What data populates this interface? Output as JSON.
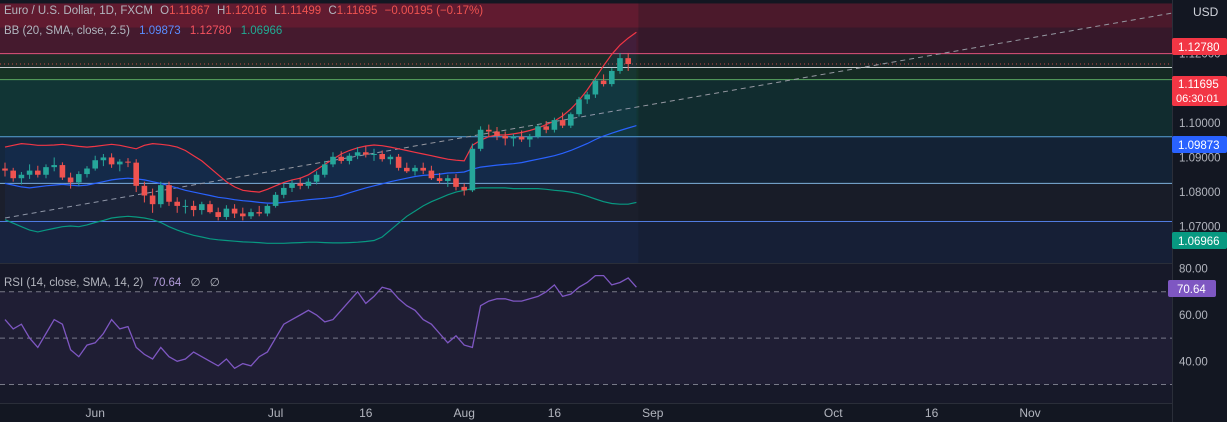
{
  "header": {
    "symbol": "Euro / U.S. Dollar, 1D, FXCM",
    "o_label": "O",
    "o": "1.11867",
    "h_label": "H",
    "h": "1.12016",
    "l_label": "L",
    "l": "1.11499",
    "c_label": "C",
    "c": "1.11695",
    "change": "−0.00195 (−0.17%)"
  },
  "bb": {
    "label": "BB (20, SMA, close, 2.5)",
    "basis": "1.09873",
    "upper": "1.12780",
    "lower": "1.06966"
  },
  "rsi": {
    "label": "RSI (14, close, SMA, 14, 2)",
    "value": "70.64",
    "na1": "∅",
    "na2": "∅"
  },
  "axis": {
    "currency": "USD",
    "price_ticks": [
      "1.12000",
      "1.11000",
      "1.10000",
      "1.09000",
      "1.08000",
      "1.07000"
    ],
    "rsi_ticks": [
      "80.00",
      "60.00",
      "40.00"
    ],
    "x_ticks": [
      "Jun",
      "Jul",
      "16",
      "Aug",
      "16",
      "Sep",
      "Oct",
      "16",
      "Nov"
    ],
    "countdown": "06:30:01"
  },
  "badges": {
    "upper": "1.12780",
    "price": "1.11695",
    "basis": "1.09873",
    "lower": "1.06966",
    "rsi": "70.64"
  },
  "colors": {
    "bg": "#131722",
    "up": "#26a69a",
    "down": "#ef5350",
    "bb_upper": "#f23645",
    "bb_basis": "#2962ff",
    "bb_lower": "#089981",
    "rsi": "#7e57c2",
    "rsi_badge": "#7e57c2"
  },
  "chart_data": {
    "type": "candlestick",
    "price_ylim": [
      1.0595,
      1.1355
    ],
    "rsi_ylim": [
      22,
      82
    ],
    "x_ticks": [
      {
        "label": "Jun",
        "index": 11
      },
      {
        "label": "Jul",
        "index": 33
      },
      {
        "label": "16",
        "index": 44
      },
      {
        "label": "Aug",
        "index": 56
      },
      {
        "label": "16",
        "index": 67
      },
      {
        "label": "Sep",
        "index": 79
      },
      {
        "label": "Oct",
        "index": 101
      },
      {
        "label": "16",
        "index": 113
      },
      {
        "label": "Nov",
        "index": 125
      }
    ],
    "zones": [
      {
        "from": 1.1275,
        "to": 1.1345,
        "color": "#cc2244"
      },
      {
        "from": 1.12,
        "to": 1.1275,
        "color": "#8a2040"
      },
      {
        "from": 1.116,
        "to": 1.12,
        "color": "#2a4a30"
      },
      {
        "from": 1.1125,
        "to": 1.116,
        "color": "#1c5a2c"
      },
      {
        "from": 1.096,
        "to": 1.1125,
        "color": "#0f6050"
      },
      {
        "from": 1.0825,
        "to": 1.096,
        "color": "#163e66"
      },
      {
        "from": 1.0715,
        "to": 1.0825,
        "color": "#252a3c"
      },
      {
        "from": 1.0595,
        "to": 1.0715,
        "color": "#1e3468"
      }
    ],
    "levels": [
      {
        "price": 1.12,
        "color": "#ff5c8a"
      },
      {
        "price": 1.116,
        "color": "#e8edf0"
      },
      {
        "price": 1.1125,
        "color": "#66bb6a"
      },
      {
        "price": 1.096,
        "color": "#64b5f6"
      },
      {
        "price": 1.0825,
        "color": "#90caf9"
      },
      {
        "price": 1.0715,
        "color": "#5c8dff"
      }
    ],
    "trend_line": {
      "from": {
        "index": 0,
        "price": 1.0725
      },
      "to": {
        "index": 149,
        "price": 1.1345
      }
    },
    "candles": [
      [
        1.0868,
        1.0885,
        1.0845,
        1.0862
      ],
      [
        1.0862,
        1.087,
        1.083,
        1.084
      ],
      [
        1.084,
        1.0858,
        1.0822,
        1.085
      ],
      [
        1.085,
        1.088,
        1.0838,
        1.0862
      ],
      [
        1.0862,
        1.0876,
        1.0842,
        1.085
      ],
      [
        1.085,
        1.088,
        1.084,
        1.0872
      ],
      [
        1.0872,
        1.09,
        1.086,
        1.0878
      ],
      [
        1.0878,
        1.0886,
        1.0835,
        1.0842
      ],
      [
        1.0842,
        1.0856,
        1.081,
        1.0828
      ],
      [
        1.0828,
        1.086,
        1.0818,
        1.0852
      ],
      [
        1.0852,
        1.0875,
        1.0842,
        1.0868
      ],
      [
        1.0868,
        1.0905,
        1.0862,
        1.0892
      ],
      [
        1.0892,
        1.091,
        1.0875,
        1.09
      ],
      [
        1.09,
        1.0912,
        1.087,
        1.088
      ],
      [
        1.088,
        1.0895,
        1.086,
        1.0888
      ],
      [
        1.0888,
        1.0898,
        1.0872,
        1.0885
      ],
      [
        1.0885,
        1.0895,
        1.08,
        1.0818
      ],
      [
        1.0818,
        1.083,
        1.077,
        1.079
      ],
      [
        1.079,
        1.081,
        1.074,
        1.0765
      ],
      [
        1.0765,
        1.083,
        1.0755,
        1.082
      ],
      [
        1.082,
        1.083,
        1.076,
        1.0772
      ],
      [
        1.0772,
        1.0785,
        1.074,
        1.076
      ],
      [
        1.076,
        1.0778,
        1.0738,
        1.076
      ],
      [
        1.076,
        1.0775,
        1.073,
        1.0748
      ],
      [
        1.0748,
        1.0772,
        1.0735,
        1.0765
      ],
      [
        1.0765,
        1.0775,
        1.0738,
        1.0742
      ],
      [
        1.0742,
        1.0755,
        1.0718,
        1.0728
      ],
      [
        1.0728,
        1.0762,
        1.072,
        1.0752
      ],
      [
        1.0752,
        1.0765,
        1.0725,
        1.0738
      ],
      [
        1.0738,
        1.0755,
        1.0718,
        1.073
      ],
      [
        1.073,
        1.0752,
        1.0722,
        1.0742
      ],
      [
        1.0742,
        1.076,
        1.073,
        1.0738
      ],
      [
        1.0738,
        1.0765,
        1.073,
        1.076
      ],
      [
        1.076,
        1.08,
        1.0755,
        1.0792
      ],
      [
        1.0792,
        1.0825,
        1.0782,
        1.0812
      ],
      [
        1.0812,
        1.0835,
        1.08,
        1.0825
      ],
      [
        1.0825,
        1.0842,
        1.0808,
        1.0818
      ],
      [
        1.0818,
        1.084,
        1.081,
        1.083
      ],
      [
        1.083,
        1.086,
        1.0822,
        1.085
      ],
      [
        1.085,
        1.089,
        1.0842,
        1.088
      ],
      [
        1.088,
        1.0915,
        1.0872,
        1.0902
      ],
      [
        1.0902,
        1.0918,
        1.0882,
        1.089
      ],
      [
        1.089,
        1.0912,
        1.088,
        1.0905
      ],
      [
        1.0905,
        1.093,
        1.0895,
        1.0915
      ],
      [
        1.0915,
        1.0932,
        1.09,
        1.0908
      ],
      [
        1.0908,
        1.0925,
        1.089,
        1.091
      ],
      [
        1.091,
        1.092,
        1.0888,
        1.0895
      ],
      [
        1.0895,
        1.0908,
        1.088,
        1.0902
      ],
      [
        1.0902,
        1.091,
        1.0862,
        1.087
      ],
      [
        1.087,
        1.0885,
        1.0855,
        1.086
      ],
      [
        1.086,
        1.0878,
        1.0848,
        1.087
      ],
      [
        1.087,
        1.0885,
        1.0852,
        1.0862
      ],
      [
        1.0862,
        1.0876,
        1.0835,
        1.084
      ],
      [
        1.084,
        1.0855,
        1.0825,
        1.0832
      ],
      [
        1.0832,
        1.085,
        1.0815,
        1.084
      ],
      [
        1.084,
        1.0852,
        1.0805,
        1.0815
      ],
      [
        1.0815,
        1.0825,
        1.079,
        1.0805
      ],
      [
        1.0805,
        1.094,
        1.08,
        1.0925
      ],
      [
        1.0925,
        1.099,
        1.0918,
        1.098
      ],
      [
        1.098,
        1.0995,
        1.096,
        1.0975
      ],
      [
        1.0975,
        1.0988,
        1.095,
        1.0962
      ],
      [
        1.0962,
        1.0975,
        1.0935,
        1.0955
      ],
      [
        1.0955,
        1.0968,
        1.0932,
        1.096
      ],
      [
        1.096,
        1.0978,
        1.0945,
        1.0952
      ],
      [
        1.0952,
        1.0968,
        1.093,
        1.096
      ],
      [
        1.096,
        1.0995,
        1.0955,
        1.099
      ],
      [
        1.099,
        1.1005,
        1.097,
        1.098
      ],
      [
        1.098,
        1.1015,
        1.0972,
        1.1008
      ],
      [
        1.1008,
        1.103,
        1.0985,
        1.0992
      ],
      [
        1.0992,
        1.103,
        1.0985,
        1.1025
      ],
      [
        1.1025,
        1.1075,
        1.1018,
        1.1068
      ],
      [
        1.1068,
        1.109,
        1.1055,
        1.1082
      ],
      [
        1.1082,
        1.113,
        1.1072,
        1.1122
      ],
      [
        1.1122,
        1.114,
        1.1105,
        1.1112
      ],
      [
        1.1112,
        1.1158,
        1.1105,
        1.115
      ],
      [
        1.115,
        1.1202,
        1.1142,
        1.1187
      ],
      [
        1.1187,
        1.1202,
        1.115,
        1.117
      ]
    ],
    "bb_upper": [
      1.093,
      1.0935,
      1.094,
      1.0938,
      1.0935,
      1.0935,
      1.0936,
      1.0938,
      1.0935,
      1.0932,
      1.093,
      1.0932,
      1.0935,
      1.0938,
      1.0935,
      1.093,
      1.0925,
      1.0935,
      1.094,
      1.0938,
      1.0935,
      1.093,
      1.092,
      1.0905,
      1.089,
      1.087,
      1.085,
      1.083,
      1.0815,
      1.0805,
      1.0802,
      1.08,
      1.0808,
      1.0818,
      1.0828,
      1.0835,
      1.084,
      1.085,
      1.0865,
      1.088,
      1.0895,
      1.091,
      1.092,
      1.0928,
      1.0933,
      1.0936,
      1.0934,
      1.093,
      1.0925,
      1.092,
      1.0915,
      1.091,
      1.0905,
      1.09,
      1.0895,
      1.0892,
      1.089,
      1.0935,
      1.095,
      1.096,
      1.0965,
      1.0965,
      1.0968,
      1.0972,
      1.0978,
      1.0985,
      1.0995,
      1.1005,
      1.102,
      1.104,
      1.1065,
      1.1095,
      1.113,
      1.1165,
      1.1198,
      1.1225,
      1.1245,
      1.1262
    ],
    "bb_basis": [
      1.0825,
      1.082,
      1.0815,
      1.0812,
      1.0815,
      1.0818,
      1.082,
      1.0822,
      1.082,
      1.0818,
      1.082,
      1.0825,
      1.083,
      1.0835,
      1.0838,
      1.084,
      1.0838,
      1.0835,
      1.083,
      1.0825,
      1.0818,
      1.0812,
      1.0805,
      1.08,
      1.0795,
      1.079,
      1.0785,
      1.0782,
      1.0778,
      1.0775,
      1.0773,
      1.077,
      1.0768,
      1.0768,
      1.077,
      1.0773,
      1.0775,
      1.0778,
      1.078,
      1.0782,
      1.0785,
      1.079,
      1.0798,
      1.0805,
      1.0812,
      1.0818,
      1.0824,
      1.083,
      1.0835,
      1.084,
      1.0845,
      1.0848,
      1.085,
      1.0852,
      1.0855,
      1.0856,
      1.0858,
      1.0866,
      1.0872,
      1.0875,
      1.0878,
      1.088,
      1.0882,
      1.0885,
      1.089,
      1.0895,
      1.09,
      1.0905,
      1.0912,
      1.092,
      1.093,
      1.094,
      1.0952,
      1.0962,
      1.097,
      1.0978,
      1.0985,
      1.0992
    ],
    "bb_lower": [
      1.072,
      1.071,
      1.07,
      1.069,
      1.0685,
      1.069,
      1.0695,
      1.07,
      1.0702,
      1.07,
      1.0705,
      1.0712,
      1.0718,
      1.0725,
      1.0728,
      1.073,
      1.0728,
      1.0725,
      1.072,
      1.0712,
      1.07,
      1.069,
      1.0682,
      1.0675,
      1.067,
      1.0665,
      1.0662,
      1.066,
      1.0658,
      1.0656,
      1.0655,
      1.0654,
      1.0652,
      1.0652,
      1.0652,
      1.0653,
      1.0654,
      1.0655,
      1.0655,
      1.0654,
      1.0653,
      1.0653,
      1.0654,
      1.0655,
      1.0657,
      1.066,
      1.067,
      1.069,
      1.071,
      1.073,
      1.0745,
      1.076,
      1.0772,
      1.0782,
      1.0792,
      1.08,
      1.0805,
      1.081,
      1.0812,
      1.0812,
      1.0812,
      1.0812,
      1.081,
      1.081,
      1.081,
      1.081,
      1.0808,
      1.0805,
      1.0803,
      1.08,
      1.0795,
      1.0788,
      1.078,
      1.0772,
      1.0767,
      1.0765,
      1.0765,
      1.077
    ],
    "rsi": [
      58,
      54,
      56,
      50,
      46,
      52,
      58,
      56,
      45,
      42,
      47,
      48,
      52,
      58,
      54,
      55,
      46,
      43,
      41,
      46,
      42,
      40,
      41,
      44,
      42,
      40,
      38,
      41,
      37,
      39,
      38,
      42,
      44,
      50,
      56,
      58,
      60,
      62,
      60,
      57,
      58,
      62,
      66,
      70,
      65,
      68,
      72,
      71,
      67,
      64,
      62,
      58,
      56,
      52,
      48,
      51,
      47,
      46,
      64,
      66,
      67,
      67,
      66,
      66,
      67,
      68,
      70,
      73,
      68,
      69,
      72,
      74,
      77,
      77,
      73,
      74,
      76,
      72
    ],
    "rsi_levels": {
      "upper": 70,
      "middle": 50,
      "lower": 30
    }
  }
}
